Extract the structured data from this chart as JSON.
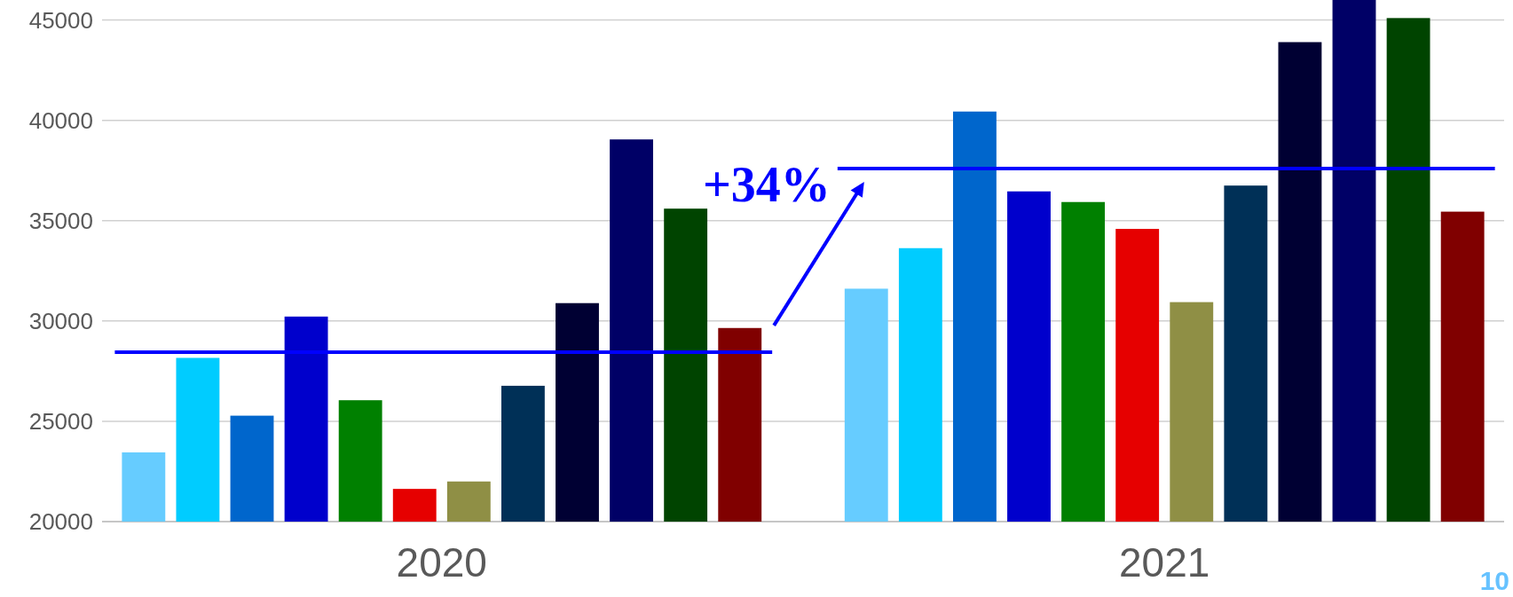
{
  "chart_data": {
    "type": "bar",
    "categories": [
      "2020",
      "2021"
    ],
    "series": [
      {
        "color": "#66ccff",
        "values": [
          23450,
          31610
        ]
      },
      {
        "color": "#00ccff",
        "values": [
          28160,
          33630
        ]
      },
      {
        "color": "#0066cc",
        "values": [
          25280,
          40440
        ]
      },
      {
        "color": "#0000cc",
        "values": [
          30220,
          36460
        ]
      },
      {
        "color": "#008000",
        "values": [
          26050,
          35930
        ]
      },
      {
        "color": "#e60000",
        "values": [
          21630,
          34590
        ]
      },
      {
        "color": "#8f8f45",
        "values": [
          22000,
          30940
        ]
      },
      {
        "color": "#003057",
        "values": [
          26770,
          36750
        ]
      },
      {
        "color": "#000033",
        "values": [
          30890,
          43900
        ]
      },
      {
        "color": "#000066",
        "values": [
          39050,
          46000
        ]
      },
      {
        "color": "#004400",
        "values": [
          35600,
          45100
        ]
      },
      {
        "color": "#800000",
        "values": [
          29650,
          35450
        ]
      }
    ],
    "ylim": [
      20000,
      46000
    ],
    "yticks": [
      20000,
      25000,
      30000,
      35000,
      40000,
      45000
    ],
    "grid": "y",
    "ref_lines": [
      {
        "axis": "y",
        "value": 28450,
        "color": "#0000ff"
      },
      {
        "axis": "y",
        "value": 37600,
        "color": "#0000ff"
      }
    ],
    "annotations": [
      "+34%",
      "10"
    ]
  }
}
